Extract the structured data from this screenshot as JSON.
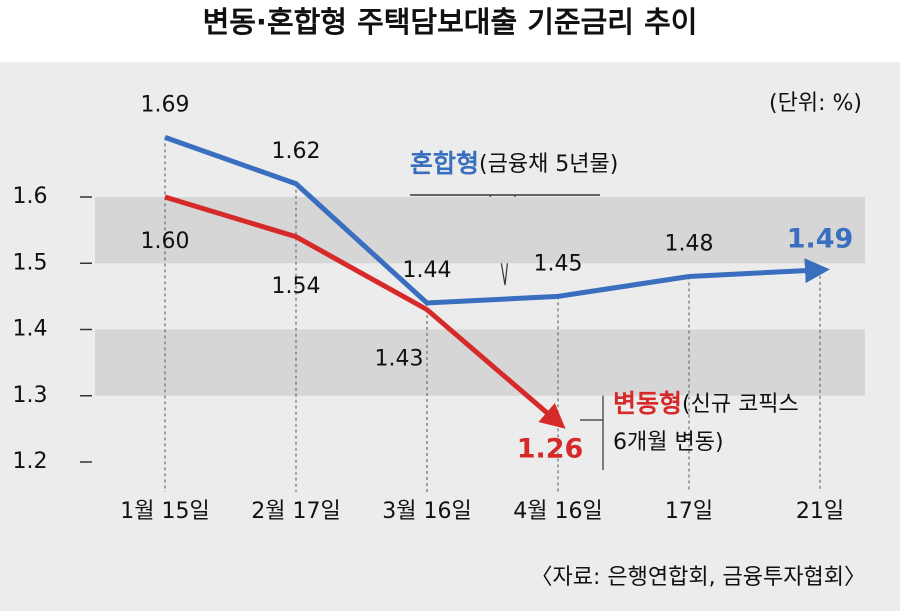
{
  "chart_data": {
    "type": "line",
    "title": "변동·혼합형 주택담보대출 기준금리 추이",
    "unit": "(단위: %)",
    "source": "〈자료: 은행연합회, 금융투자협회〉",
    "categories": [
      "1월 15일",
      "2월 17일",
      "3월 16일",
      "4월 16일",
      "17일",
      "21일"
    ],
    "series": [
      {
        "name": "혼합형",
        "note": [
          "(금융채 5년물)"
        ],
        "color": "#3a6fbf",
        "values": [
          1.69,
          1.62,
          1.44,
          1.45,
          1.48,
          1.49
        ],
        "value_labels": [
          "1.69",
          "1.62",
          "1.44",
          "1.45",
          "1.48",
          "1.49"
        ]
      },
      {
        "name": "변동형",
        "note": [
          "(신규 코픽스",
          "6개월 변동)"
        ],
        "color": "#d62a2a",
        "values": [
          1.6,
          1.54,
          1.43,
          1.26,
          null,
          null
        ],
        "value_labels": [
          "1.60",
          "1.54",
          "1.43",
          "1.26",
          null,
          null
        ]
      }
    ],
    "ylim": [
      1.2,
      1.8
    ],
    "yticks": [
      1.2,
      1.3,
      1.4,
      1.5,
      1.6
    ]
  }
}
